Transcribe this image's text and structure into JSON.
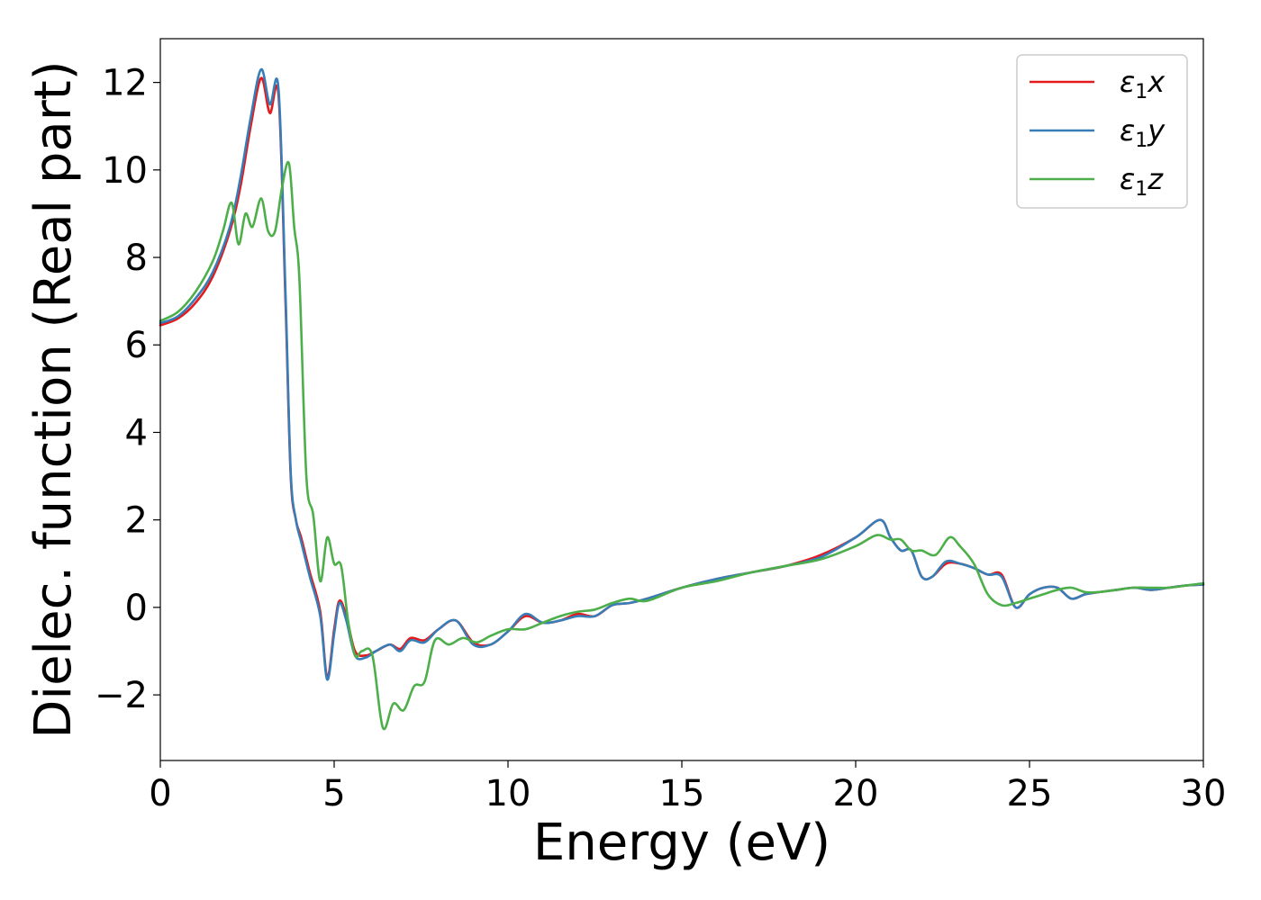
{
  "chart_data": {
    "type": "line",
    "title": "",
    "xlabel": "Energy (eV)",
    "ylabel": "Dielec. function (Real part)",
    "xlim": [
      0,
      30
    ],
    "ylim": [
      -3.5,
      13.0
    ],
    "xticks": [
      0,
      5,
      10,
      15,
      20,
      25,
      30
    ],
    "xtick_labels": [
      "0",
      "5",
      "10",
      "15",
      "20",
      "25",
      "30"
    ],
    "yticks": [
      -2,
      0,
      2,
      4,
      6,
      8,
      10,
      12
    ],
    "ytick_labels": [
      "−2",
      "0",
      "2",
      "4",
      "6",
      "8",
      "10",
      "12"
    ],
    "grid": false,
    "legend_position": "top-right",
    "series": [
      {
        "name": "ε1x",
        "legend": {
          "base": "ε",
          "sub": "1",
          "axis": "x"
        },
        "color": "#e41a1c",
        "x": [
          0,
          0.5,
          1.0,
          1.5,
          2.0,
          2.3,
          2.6,
          2.9,
          3.15,
          3.4,
          3.6,
          3.75,
          3.9,
          4.05,
          4.3,
          4.6,
          4.8,
          5.0,
          5.15,
          5.35,
          5.6,
          5.9,
          6.2,
          6.6,
          6.9,
          7.2,
          7.6,
          8.0,
          8.5,
          9.0,
          9.5,
          10.0,
          10.5,
          11.0,
          11.5,
          12.0,
          12.5,
          13.0,
          13.5,
          14.0,
          15.0,
          16.0,
          17.0,
          18.0,
          19.0,
          20.0,
          20.7,
          21.0,
          21.3,
          21.6,
          21.9,
          22.2,
          22.6,
          23.0,
          23.4,
          23.8,
          24.2,
          24.6,
          25.0,
          25.4,
          25.8,
          26.2,
          26.6,
          27.0,
          27.5,
          28.0,
          28.5,
          29.0,
          29.5,
          30.0
        ],
        "y": [
          6.45,
          6.6,
          6.95,
          7.55,
          8.6,
          9.6,
          11.0,
          12.1,
          11.3,
          11.7,
          7.0,
          3.0,
          2.0,
          1.6,
          0.8,
          -0.1,
          -1.6,
          -0.5,
          0.15,
          -0.2,
          -1.0,
          -1.1,
          -1.0,
          -0.85,
          -0.95,
          -0.7,
          -0.75,
          -0.5,
          -0.3,
          -0.8,
          -0.85,
          -0.55,
          -0.2,
          -0.35,
          -0.3,
          -0.15,
          -0.2,
          0.05,
          0.1,
          0.2,
          0.45,
          0.65,
          0.8,
          0.95,
          1.2,
          1.6,
          2.0,
          1.6,
          1.3,
          1.3,
          0.7,
          0.7,
          1.0,
          1.0,
          0.9,
          0.75,
          0.75,
          0.0,
          0.3,
          0.45,
          0.45,
          0.2,
          0.3,
          0.35,
          0.4,
          0.45,
          0.4,
          0.45,
          0.5,
          0.52
        ]
      },
      {
        "name": "ε1y",
        "legend": {
          "base": "ε",
          "sub": "1",
          "axis": "y"
        },
        "color": "#377eb8",
        "x": [
          0,
          0.5,
          1.0,
          1.5,
          2.0,
          2.3,
          2.6,
          2.9,
          3.15,
          3.4,
          3.6,
          3.75,
          3.9,
          4.05,
          4.3,
          4.6,
          4.8,
          5.0,
          5.15,
          5.35,
          5.6,
          5.9,
          6.2,
          6.6,
          6.9,
          7.2,
          7.6,
          8.0,
          8.5,
          9.0,
          9.5,
          10.0,
          10.5,
          11.0,
          11.5,
          12.0,
          12.5,
          13.0,
          13.5,
          14.0,
          15.0,
          16.0,
          17.0,
          18.0,
          19.0,
          20.0,
          20.7,
          21.0,
          21.3,
          21.6,
          21.9,
          22.2,
          22.6,
          23.0,
          23.4,
          23.8,
          24.2,
          24.6,
          25.0,
          25.4,
          25.8,
          26.2,
          26.6,
          27.0,
          27.5,
          28.0,
          28.5,
          29.0,
          29.5,
          30.0
        ],
        "y": [
          6.5,
          6.65,
          7.05,
          7.65,
          8.7,
          9.8,
          11.2,
          12.3,
          11.5,
          11.85,
          7.2,
          3.1,
          2.0,
          1.5,
          0.7,
          -0.2,
          -1.65,
          -0.6,
          0.1,
          -0.3,
          -1.1,
          -1.15,
          -1.0,
          -0.85,
          -1.0,
          -0.75,
          -0.8,
          -0.5,
          -0.3,
          -0.85,
          -0.85,
          -0.55,
          -0.15,
          -0.35,
          -0.3,
          -0.2,
          -0.2,
          0.05,
          0.1,
          0.2,
          0.45,
          0.65,
          0.8,
          0.95,
          1.15,
          1.6,
          2.0,
          1.6,
          1.3,
          1.3,
          0.7,
          0.7,
          1.05,
          1.0,
          0.9,
          0.75,
          0.7,
          0.0,
          0.3,
          0.45,
          0.45,
          0.2,
          0.3,
          0.35,
          0.4,
          0.45,
          0.4,
          0.45,
          0.5,
          0.52
        ]
      },
      {
        "name": "ε1z",
        "legend": {
          "base": "ε",
          "sub": "1",
          "axis": "z"
        },
        "color": "#4daf4a",
        "x": [
          0,
          0.5,
          1.0,
          1.5,
          1.8,
          2.05,
          2.25,
          2.45,
          2.65,
          2.9,
          3.1,
          3.3,
          3.5,
          3.7,
          3.85,
          4.0,
          4.2,
          4.4,
          4.6,
          4.8,
          5.0,
          5.2,
          5.4,
          5.6,
          5.8,
          6.1,
          6.4,
          6.7,
          7.0,
          7.3,
          7.6,
          7.9,
          8.3,
          8.7,
          9.1,
          9.5,
          10.0,
          10.5,
          11.0,
          11.5,
          12.0,
          12.5,
          13.0,
          13.5,
          14.0,
          15.0,
          16.0,
          17.0,
          18.0,
          19.0,
          20.0,
          20.6,
          21.0,
          21.3,
          21.6,
          21.9,
          22.3,
          22.7,
          23.0,
          23.4,
          23.8,
          24.2,
          24.6,
          25.0,
          25.4,
          25.8,
          26.2,
          26.6,
          27.0,
          27.5,
          28.0,
          28.5,
          29.0,
          29.5,
          30.0
        ],
        "y": [
          6.55,
          6.75,
          7.2,
          7.9,
          8.6,
          9.25,
          8.3,
          9.0,
          8.7,
          9.35,
          8.6,
          8.6,
          9.6,
          10.15,
          8.7,
          7.5,
          3.0,
          2.1,
          0.6,
          1.6,
          1.0,
          0.95,
          -0.3,
          -1.1,
          -1.0,
          -1.1,
          -2.75,
          -2.2,
          -2.35,
          -1.8,
          -1.7,
          -0.75,
          -0.85,
          -0.7,
          -0.8,
          -0.65,
          -0.5,
          -0.5,
          -0.35,
          -0.2,
          -0.1,
          -0.05,
          0.1,
          0.2,
          0.15,
          0.45,
          0.6,
          0.8,
          0.95,
          1.1,
          1.4,
          1.65,
          1.55,
          1.55,
          1.3,
          1.3,
          1.2,
          1.6,
          1.4,
          1.0,
          0.3,
          0.05,
          0.1,
          0.2,
          0.3,
          0.4,
          0.45,
          0.35,
          0.35,
          0.4,
          0.45,
          0.45,
          0.45,
          0.5,
          0.55
        ]
      }
    ]
  }
}
